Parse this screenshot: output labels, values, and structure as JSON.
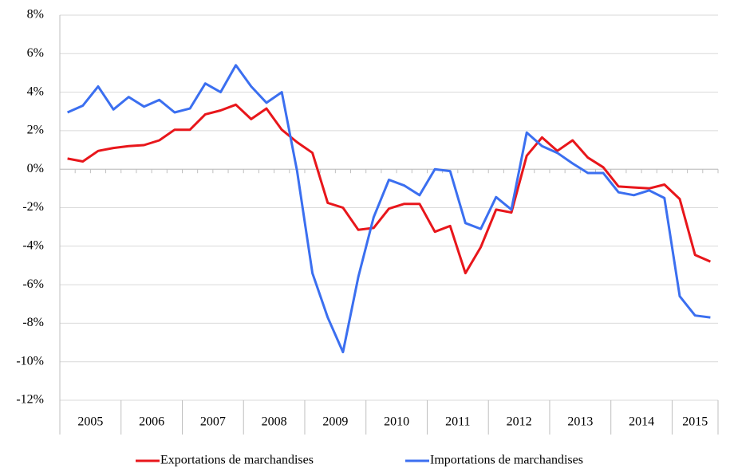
{
  "chart_data": {
    "type": "line",
    "categories": [
      "2005",
      null,
      null,
      null,
      "2006",
      null,
      null,
      null,
      "2007",
      null,
      null,
      null,
      "2008",
      null,
      null,
      null,
      "2009",
      null,
      null,
      null,
      "2010",
      null,
      null,
      null,
      "2011",
      null,
      null,
      null,
      "2012",
      null,
      null,
      null,
      "2013",
      null,
      null,
      null,
      "2014",
      null,
      null,
      null,
      "2015",
      null,
      null
    ],
    "series": [
      {
        "name": "Exportations de marchandises",
        "color": "#e8161b",
        "values": [
          0.55,
          0.4,
          0.95,
          1.1,
          1.2,
          1.25,
          1.5,
          2.05,
          2.05,
          2.85,
          3.05,
          3.35,
          2.6,
          3.15,
          2.05,
          1.4,
          0.85,
          -1.75,
          -2.0,
          -3.15,
          -3.05,
          -2.05,
          -1.8,
          -1.8,
          -3.25,
          -2.95,
          -5.4,
          -4.05,
          -2.1,
          -2.25,
          0.7,
          1.65,
          0.95,
          1.5,
          0.6,
          0.1,
          -0.9,
          -0.95,
          -1.0,
          -0.8,
          -1.55,
          -4.45,
          -4.8
        ]
      },
      {
        "name": "Importations de marchandises",
        "color": "#3b6ff0",
        "values": [
          2.95,
          3.3,
          4.3,
          3.1,
          3.75,
          3.25,
          3.6,
          2.95,
          3.15,
          4.45,
          4.0,
          5.4,
          4.3,
          3.45,
          4.0,
          -0.1,
          -5.4,
          -7.7,
          -9.5,
          -5.6,
          -2.5,
          -0.55,
          -0.85,
          -1.35,
          0.0,
          -0.1,
          -2.8,
          -3.1,
          -1.45,
          -2.1,
          1.9,
          1.2,
          0.85,
          0.3,
          -0.2,
          -0.2,
          -1.2,
          -1.35,
          -1.1,
          -1.5,
          -6.6,
          -7.6,
          -7.7
        ]
      }
    ],
    "ylim": [
      -12,
      8
    ],
    "yticks": [
      {
        "value": -12,
        "label": "-12%"
      },
      {
        "value": -10,
        "label": "-10%"
      },
      {
        "value": -8,
        "label": "-8%"
      },
      {
        "value": -6,
        "label": "-6%"
      },
      {
        "value": -4,
        "label": "-4%"
      },
      {
        "value": -2,
        "label": "-2%"
      },
      {
        "value": 0,
        "label": "0%"
      },
      {
        "value": 2,
        "label": "2%"
      },
      {
        "value": 4,
        "label": "4%"
      },
      {
        "value": 6,
        "label": "6%"
      },
      {
        "value": 8,
        "label": "8%"
      }
    ],
    "grid": true,
    "legend": "bottom"
  }
}
